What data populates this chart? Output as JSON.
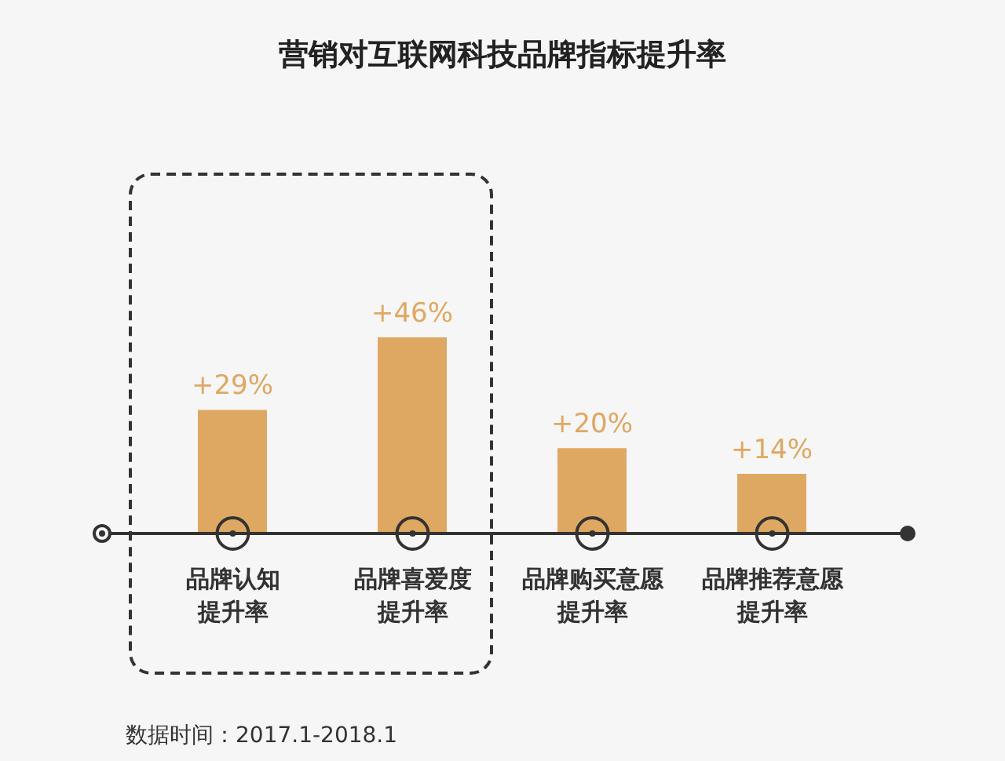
{
  "chart_data": {
    "type": "bar",
    "title": "营销对互联网科技品牌指标提升率",
    "categories": [
      "品牌认知提升率",
      "品牌喜爱度提升率",
      "品牌购买意愿提升率",
      "品牌推荐意愿提升率"
    ],
    "values": [
      29,
      46,
      20,
      14
    ],
    "value_labels": [
      "+29%",
      "+46%",
      "+20%",
      "+14%"
    ],
    "color": "#dfa862",
    "annotations": [
      "数据时间：2017.1-2018.1"
    ]
  }
}
